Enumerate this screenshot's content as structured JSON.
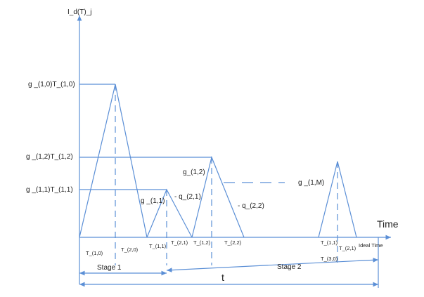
{
  "axes": {
    "y_label": "I_d(T)_j",
    "x_label": "Time",
    "y_ticks": [
      "g _(1,0)T_(1,0)",
      "g _(1,2)T_(1,2)",
      "g _(1,1)T_(1,1)"
    ]
  },
  "peak_labels": [
    "g _(1,1)",
    "- q_(2,1)",
    "g_(1,2)",
    "- q_(2,2)",
    "g _(1,M)"
  ],
  "interval_labels": [
    "T_(1,0)",
    "T_(2,0)",
    "T_(1,1)",
    "T_(2,1)",
    "T_(1,2)",
    "T_(2,2)",
    "T_(1,1)",
    "T_(2,1)",
    "Ideal Time",
    "T_(3,0)"
  ],
  "stages": {
    "stage1": "Stage 1",
    "stage2": "Stage 2",
    "total": "t"
  },
  "colors": {
    "line": "#5b8fd6",
    "text": "#222222"
  }
}
